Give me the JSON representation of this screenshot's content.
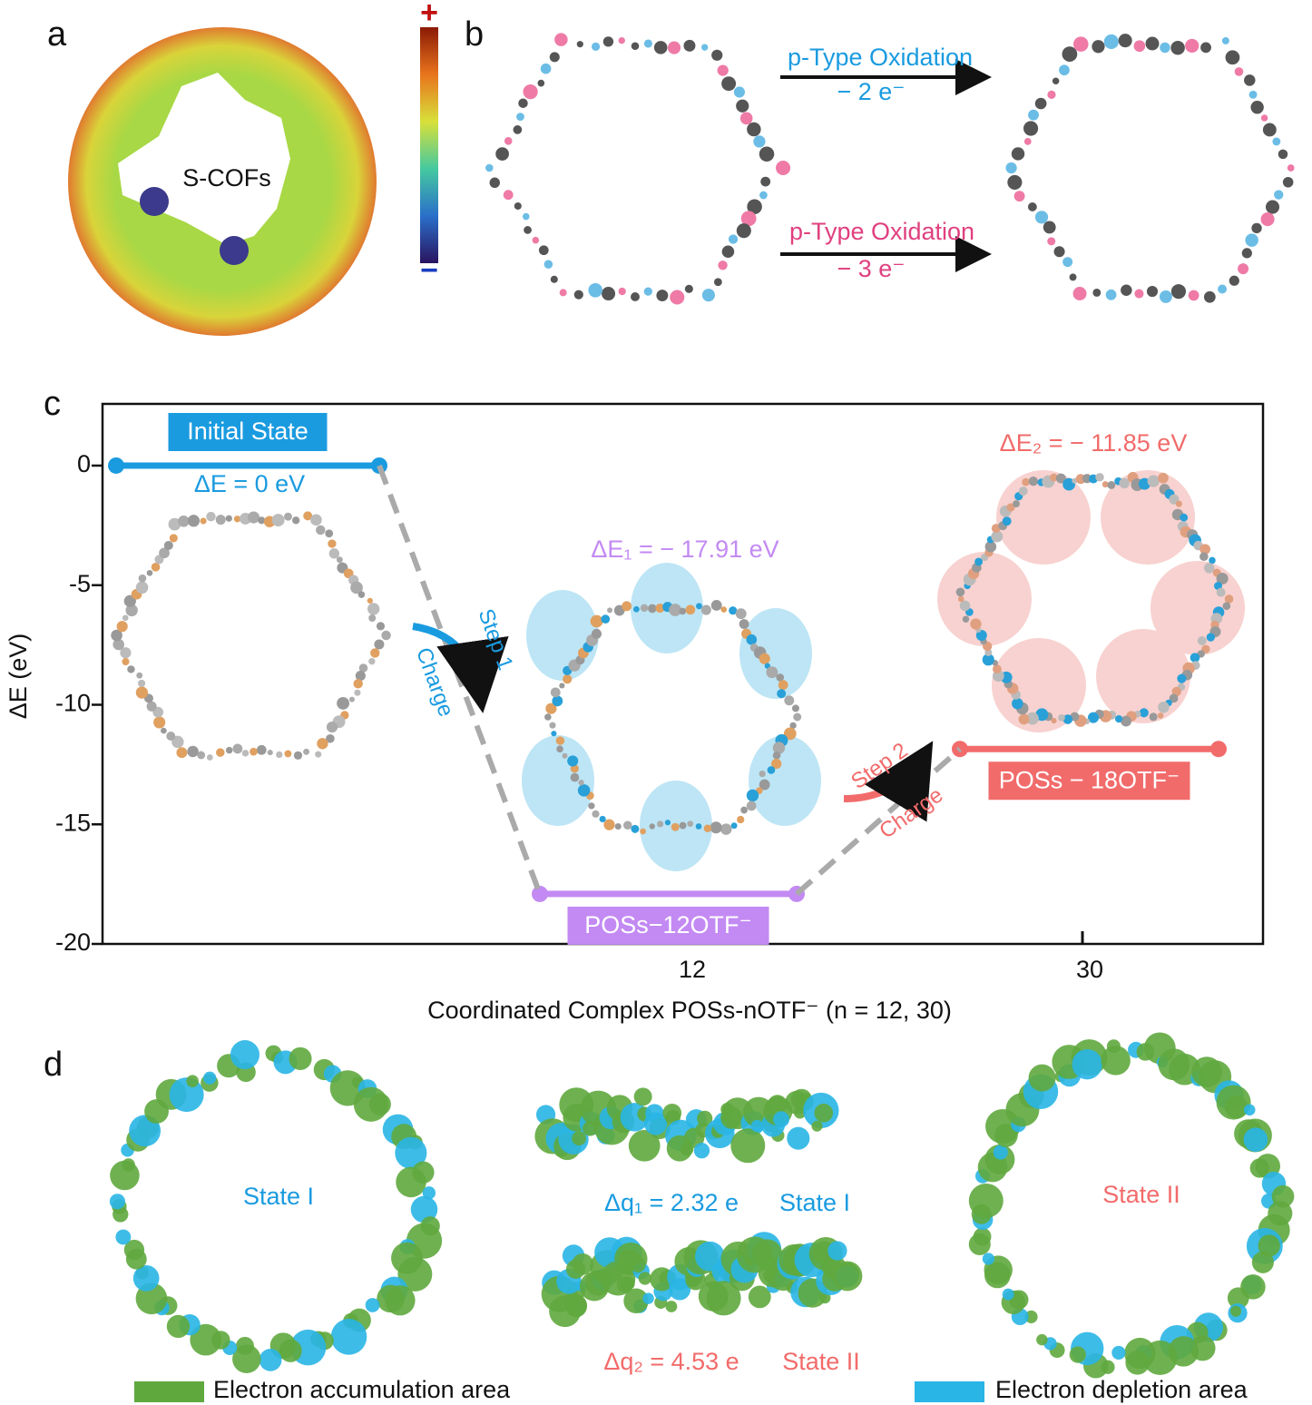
{
  "panel_a": {
    "label": "a",
    "molecule_label": "S-COFs",
    "scale_max": "+",
    "scale_min": "−"
  },
  "panel_b": {
    "label": "b",
    "reactions": [
      {
        "name": "p-Type Oxidation",
        "electrons": "− 2 e⁻",
        "color": "#1a9be0"
      },
      {
        "name": "p-Type Oxidation",
        "electrons": "− 3 e⁻",
        "color": "#e0407f"
      }
    ]
  },
  "chart_data": {
    "type": "energy-level",
    "label": "c",
    "y_label": "ΔE (eV)",
    "x_label": "Coordinated Complex POSs-nOTF⁻ (n = 12, 30)",
    "categories": [
      null,
      "12",
      "30"
    ],
    "levels": [
      "Initial State",
      "POSs−12OTF⁻",
      "POSs − 18OTF⁻"
    ],
    "values": [
      0,
      -17.91,
      -11.85
    ],
    "value_labels": [
      "ΔE = 0 eV",
      "ΔE₁ = − 17.91 eV",
      "ΔE₂ = − 11.85 eV"
    ],
    "colors": [
      "#1a9be0",
      "#c38af3",
      "#f26b6b"
    ],
    "steps": [
      {
        "step": "Step 1",
        "action": "Charge"
      },
      {
        "step": "Step 2",
        "action": "Charge"
      }
    ],
    "ylim": [
      -20,
      2.58
    ],
    "yticks": [
      0,
      -5,
      -10,
      -15,
      -20
    ]
  },
  "panel_d": {
    "label": "d",
    "left_state": "State I",
    "right_state": "State II",
    "charge_transfers": [
      {
        "delta": "Δq₁ = 2.32 e",
        "state": "State I"
      },
      {
        "delta": "Δq₂ = 4.53 e",
        "state": "State II"
      }
    ],
    "legend": [
      {
        "name": "Electron accumulation area",
        "color": "#5fa83e"
      },
      {
        "name": "Electron depletion area",
        "color": "#29b5e6"
      }
    ]
  }
}
